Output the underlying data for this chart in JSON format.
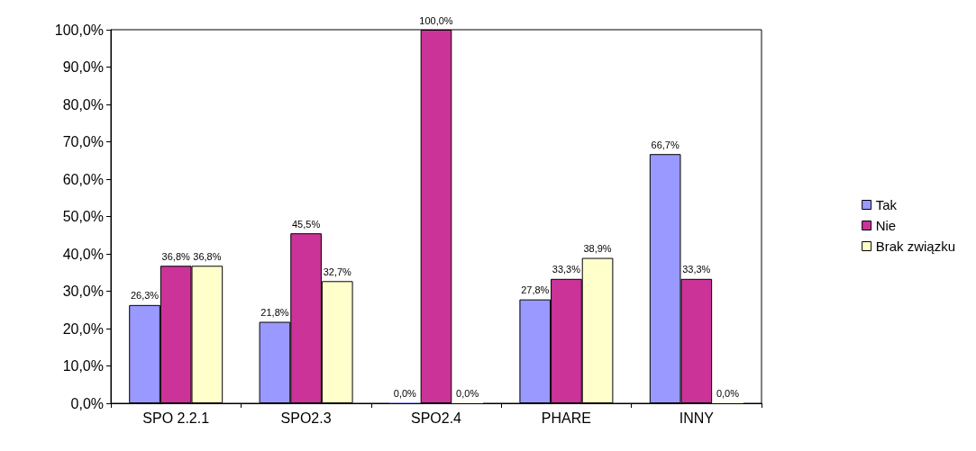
{
  "chart_data": {
    "type": "bar",
    "categories": [
      "SPO 2.2.1",
      "SPO2.3",
      "SPO2.4",
      "PHARE",
      "INNY"
    ],
    "series": [
      {
        "name": "Tak",
        "color": "#9999ff",
        "values": [
          26.3,
          21.8,
          0,
          27.8,
          66.7
        ],
        "value_labels": [
          "26,3%",
          "21,8%",
          "0,0%",
          "27,8%",
          "66,7%"
        ]
      },
      {
        "name": "Nie",
        "color": "#cc3399",
        "values": [
          36.8,
          45.5,
          100,
          33.3,
          33.3
        ],
        "value_labels": [
          "36,8%",
          "45,5%",
          "100,0%",
          "33,3%",
          "33,3%"
        ]
      },
      {
        "name": "Brak związku",
        "color": "#ffffcc",
        "values": [
          36.8,
          32.7,
          0,
          38.9,
          0
        ],
        "value_labels": [
          "36,8%",
          "32,7%",
          "0,0%",
          "38,9%",
          "0,0%"
        ]
      }
    ],
    "ylim": [
      0,
      100
    ],
    "yticks": [
      {
        "value": 0,
        "label": "0,0%"
      },
      {
        "value": 10,
        "label": "10,0%"
      },
      {
        "value": 20,
        "label": "20,0%"
      },
      {
        "value": 30,
        "label": "30,0%"
      },
      {
        "value": 40,
        "label": "40,0%"
      },
      {
        "value": 50,
        "label": "50,0%"
      },
      {
        "value": 60,
        "label": "60,0%"
      },
      {
        "value": 70,
        "label": "70,0%"
      },
      {
        "value": 80,
        "label": "80,0%"
      },
      {
        "value": 90,
        "label": "90,0%"
      },
      {
        "value": 100,
        "label": "100,0%"
      }
    ],
    "grid": false,
    "legend": "right"
  }
}
